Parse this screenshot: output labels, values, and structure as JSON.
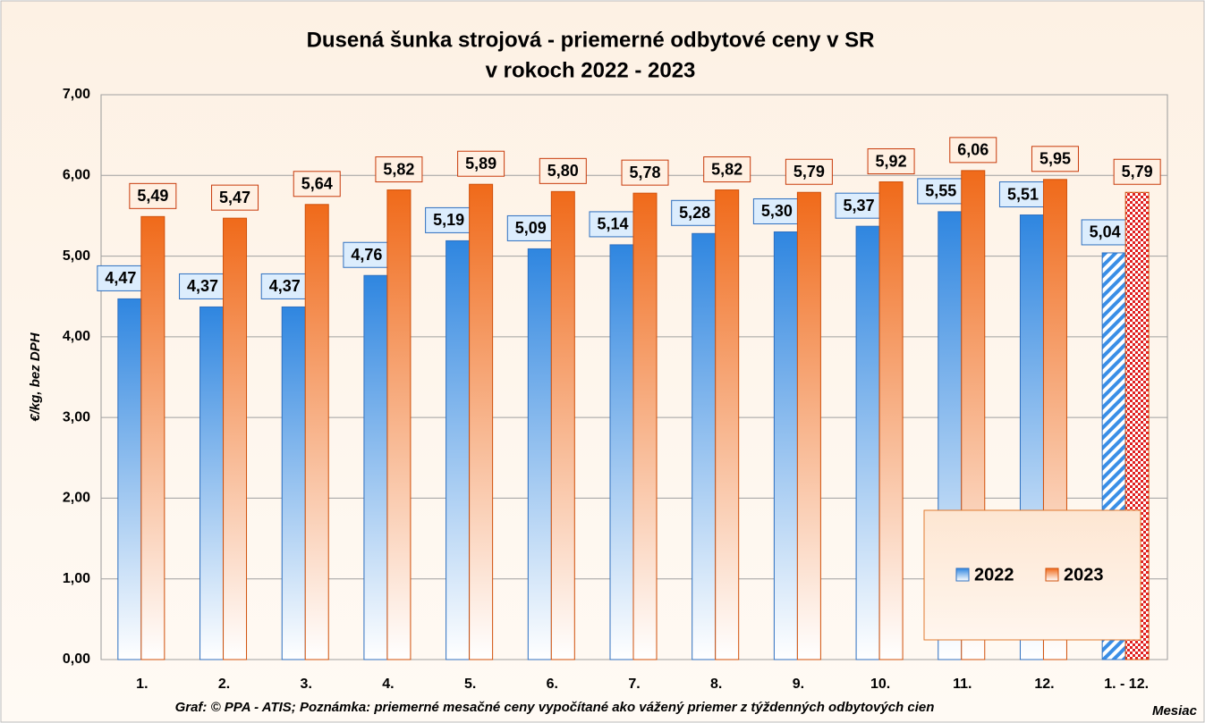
{
  "chart_data": {
    "type": "bar",
    "title": [
      "Dusená šunka strojová - priemerné odbytové ceny v SR",
      "v rokoch 2022 - 2023"
    ],
    "y_label": "€/kg, bez DPH",
    "x_label": "Mesiac",
    "note": "Graf: © PPA - ATIS; Poznámka: priemerné mesačné ceny vypočítané ako vážený priemer z týždenných odbytových cien",
    "categories": [
      "1.",
      "2.",
      "3.",
      "4.",
      "5.",
      "6.",
      "7.",
      "8.",
      "9.",
      "10.",
      "11.",
      "12.",
      "1. - 12."
    ],
    "series": [
      {
        "name": "2022",
        "color": "#2f86e0",
        "values": [
          4.47,
          4.37,
          4.37,
          4.76,
          5.19,
          5.09,
          5.14,
          5.28,
          5.3,
          5.37,
          5.55,
          5.51,
          5.04
        ],
        "value_labels": [
          "4,47",
          "4,37",
          "4,37",
          "4,76",
          "5,19",
          "5,09",
          "5,14",
          "5,28",
          "5,30",
          "5,37",
          "5,55",
          "5,51",
          "5,04"
        ]
      },
      {
        "name": "2023",
        "color": "#f06a1a",
        "values": [
          5.49,
          5.47,
          5.64,
          5.82,
          5.89,
          5.8,
          5.78,
          5.82,
          5.79,
          5.92,
          6.06,
          5.95,
          5.79
        ],
        "value_labels": [
          "5,49",
          "5,47",
          "5,64",
          "5,82",
          "5,89",
          "5,80",
          "5,78",
          "5,82",
          "5,79",
          "5,92",
          "6,06",
          "5,95",
          "5,79"
        ]
      }
    ],
    "ylim": [
      0,
      7
    ],
    "yticks": [
      {
        "value": 0,
        "label": "0,00"
      },
      {
        "value": 1,
        "label": "1,00"
      },
      {
        "value": 2,
        "label": "2,00"
      },
      {
        "value": 3,
        "label": "3,00"
      },
      {
        "value": 4,
        "label": "4,00"
      },
      {
        "value": 5,
        "label": "5,00"
      },
      {
        "value": 6,
        "label": "6,00"
      },
      {
        "value": 7,
        "label": "7,00"
      }
    ],
    "grid": true,
    "legend": "lower right"
  }
}
